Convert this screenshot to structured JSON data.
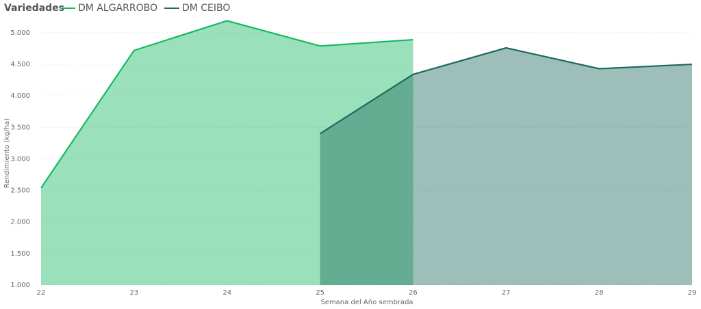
{
  "chart_data": {
    "type": "area",
    "legend_title": "Variedades",
    "legend": "top-left",
    "x_label": "Semana del Año sembrada",
    "y_label": "Rendimiento (kg/ha)",
    "x": [
      22,
      23,
      24,
      25,
      26,
      27,
      28,
      29
    ],
    "series": [
      {
        "name": "DM ALGARROBO",
        "color": "#16b862",
        "values": [
          2540,
          4720,
          5190,
          4790,
          4890,
          null,
          null,
          null
        ]
      },
      {
        "name": "DM CEIBO",
        "color": "#1e6a5d",
        "values": [
          null,
          null,
          null,
          3400,
          4340,
          4760,
          4430,
          4500
        ]
      }
    ],
    "xlim": [
      22,
      29
    ],
    "xticks": [
      22,
      23,
      24,
      25,
      26,
      27,
      28,
      29
    ],
    "ylim": [
      1000,
      5400
    ],
    "yticks": [
      {
        "value": 1000,
        "label": "1.000"
      },
      {
        "value": 1500,
        "label": "1.500"
      },
      {
        "value": 2000,
        "label": "2.000"
      },
      {
        "value": 2500,
        "label": "2.500"
      },
      {
        "value": 3000,
        "label": "3.000"
      },
      {
        "value": 3500,
        "label": "3.500"
      },
      {
        "value": 4000,
        "label": "4.000"
      },
      {
        "value": 4500,
        "label": "4.500"
      },
      {
        "value": 5000,
        "label": "5.000"
      }
    ],
    "grid": true
  }
}
